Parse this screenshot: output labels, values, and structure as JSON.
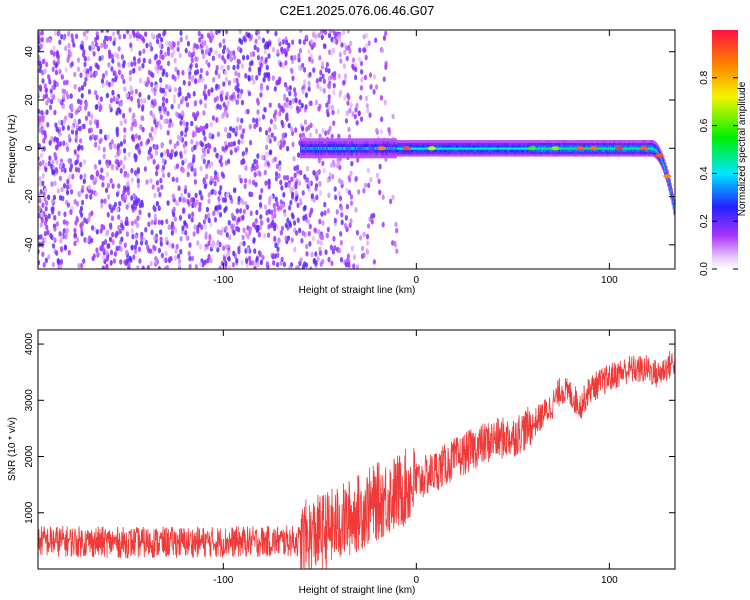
{
  "title": "C2E1.2025.076.06.46.G07",
  "colors": {
    "snr_line": "#f03a3a",
    "frame": "#000000"
  },
  "chart_data": [
    {
      "type": "heatmap",
      "title": "C2E1.2025.076.06.46.G07",
      "xlabel": "Height of straight line (km)",
      "ylabel": "Frequency (Hz)",
      "xlim": [
        -196,
        134
      ],
      "ylim": [
        -50,
        49
      ],
      "xticks": [
        -100,
        0,
        100
      ],
      "yticks": [
        -40,
        -20,
        0,
        20,
        40
      ],
      "colormap": "rainbow (magenta-blue-cyan-green-yellow-red)",
      "colorbar": {
        "label": "Normalized spectral amplitude",
        "range": [
          0,
          1
        ],
        "ticks": [
          0.0,
          0.2,
          0.4,
          0.6,
          0.8
        ]
      },
      "features": {
        "noise_region_x": [
          -196,
          -20
        ],
        "signal_band_center_hz": 0,
        "signal_band_start_x": -60,
        "signal_dip_start_x": 122,
        "signal_end_freq_hz": -26
      }
    },
    {
      "type": "line",
      "xlabel": "Height of straight line (km)",
      "ylabel": "SNR (10 * v/v)",
      "xlim": [
        -196,
        134
      ],
      "ylim": [
        0,
        4250
      ],
      "xticks": [
        -100,
        0,
        100
      ],
      "yticks": [
        1000,
        2000,
        3000,
        4000
      ],
      "series": [
        {
          "x": [
            -196,
            -150,
            -100,
            -60,
            -50,
            -40,
            -30,
            -20,
            -10,
            0,
            10,
            20,
            30,
            40,
            50,
            60,
            70,
            75,
            80,
            85,
            90,
            100,
            110,
            120,
            125,
            130,
            134
          ],
          "values": [
            500,
            470,
            480,
            500,
            650,
            800,
            1000,
            1200,
            1350,
            1550,
            1750,
            1950,
            2150,
            2300,
            2350,
            2550,
            2900,
            3200,
            3100,
            2900,
            3200,
            3400,
            3550,
            3550,
            3450,
            3600,
            3700
          ]
        }
      ]
    }
  ]
}
